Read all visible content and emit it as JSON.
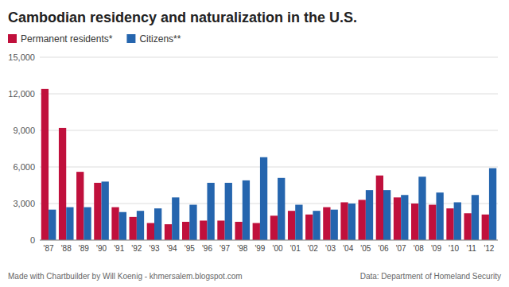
{
  "chart_data": {
    "type": "bar",
    "title": "Cambodian residency and naturalization in the U.S.",
    "annotations": [
      "Made with Chartbuilder by Will Koenig - khmersalem.blogspot.com",
      "Data: Department of Homeland Security"
    ],
    "categories": [
      "'87",
      "'88",
      "'89",
      "'90",
      "'91",
      "'92",
      "'93",
      "'94",
      "'95",
      "'96",
      "'97",
      "'98",
      "'99",
      "'00",
      "'01",
      "'02",
      "'03",
      "'04",
      "'05",
      "'06",
      "'07",
      "'08",
      "'09",
      "'10",
      "'11",
      "'12"
    ],
    "series": [
      {
        "name": "Permanent residents*",
        "color": "#c0103c",
        "values": [
          12400,
          9200,
          5600,
          4700,
          2700,
          1900,
          1400,
          1300,
          1500,
          1600,
          1600,
          1500,
          1400,
          2000,
          2400,
          2100,
          2700,
          3100,
          3300,
          5300,
          3500,
          3000,
          2900,
          2600,
          2200,
          2100
        ]
      },
      {
        "name": "Citizens**",
        "color": "#2565ae",
        "values": [
          2500,
          2700,
          2700,
          4800,
          2300,
          2400,
          2600,
          3500,
          2900,
          4700,
          4700,
          4900,
          6800,
          5100,
          2900,
          2400,
          2500,
          3000,
          4100,
          4100,
          3700,
          5200,
          3900,
          3100,
          3700,
          5900
        ]
      }
    ],
    "ylim": [
      0,
      15000
    ],
    "yticks": [
      0,
      {
        "value": 3000,
        "label": "3,000"
      },
      {
        "value": 6000,
        "label": "6,000"
      },
      {
        "value": 9000,
        "label": "9,000"
      },
      {
        "value": 12000,
        "label": "12,000"
      },
      {
        "value": 15000,
        "label": "15,000"
      }
    ],
    "grid": true,
    "legend": "top"
  }
}
